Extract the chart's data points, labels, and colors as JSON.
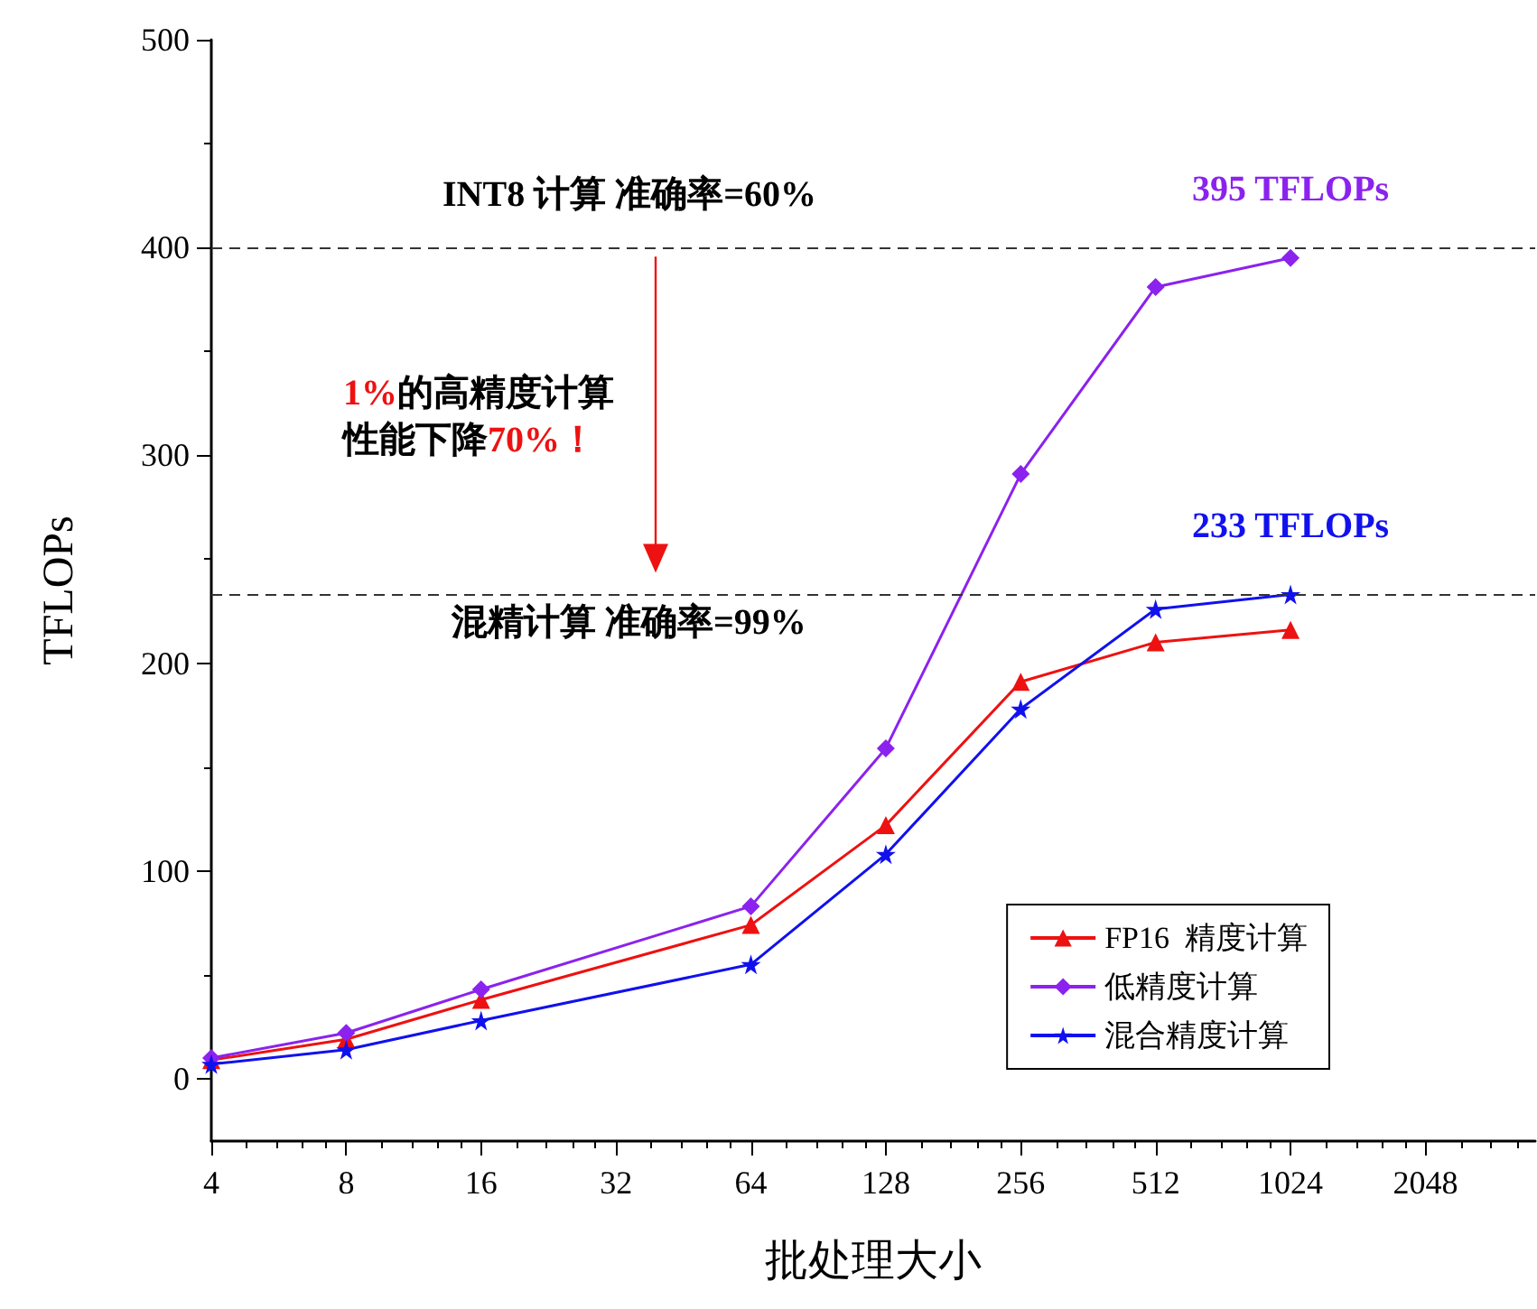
{
  "chart_data": {
    "type": "line",
    "xlabel": "批处理大小",
    "ylabel": "TFLOPs",
    "log": "x",
    "xlim": [
      4,
      3600
    ],
    "xticks": [
      4,
      8,
      16,
      32,
      64,
      128,
      256,
      512,
      1024,
      2048
    ],
    "ylim": [
      -30,
      500
    ],
    "yticks": [
      0,
      100,
      200,
      300,
      400,
      500
    ],
    "grid": false,
    "legend": "bottom right",
    "series": [
      {
        "name": "FP16  精度计算",
        "color": "#ee1111",
        "marker": "triangle",
        "x": [
          4,
          8,
          16,
          64,
          128,
          256,
          512,
          1024
        ],
        "values": [
          9,
          19,
          38,
          74,
          122,
          191,
          210,
          216
        ]
      },
      {
        "name": "低精度计算",
        "color": "#8b22ee",
        "marker": "diamond",
        "x": [
          4,
          8,
          16,
          64,
          128,
          256,
          512,
          1024
        ],
        "values": [
          10,
          22,
          43,
          83,
          159,
          291,
          381,
          395
        ]
      },
      {
        "name": "混合精度计算",
        "color": "#1111ee",
        "marker": "star",
        "x": [
          4,
          8,
          16,
          64,
          128,
          256,
          512,
          1024
        ],
        "values": [
          7,
          14,
          28,
          55,
          108,
          178,
          226,
          233
        ]
      }
    ],
    "ref_lines": [
      {
        "axis": "y",
        "value": 400,
        "line_style": "dashed",
        "color": "#333333"
      },
      {
        "axis": "y",
        "value": 233,
        "line_style": "dashed",
        "color": "#333333"
      }
    ],
    "annotations": [
      "INT8 计算 准确率=60%",
      "1%的高精度计算",
      "性能下降70%！",
      "混精计算 准确率=99%",
      {
        "text": "395 TFLOPs",
        "x": 1024,
        "y": 395
      },
      {
        "text": "233 TFLOPs",
        "x": 1024,
        "y": 233
      }
    ]
  }
}
